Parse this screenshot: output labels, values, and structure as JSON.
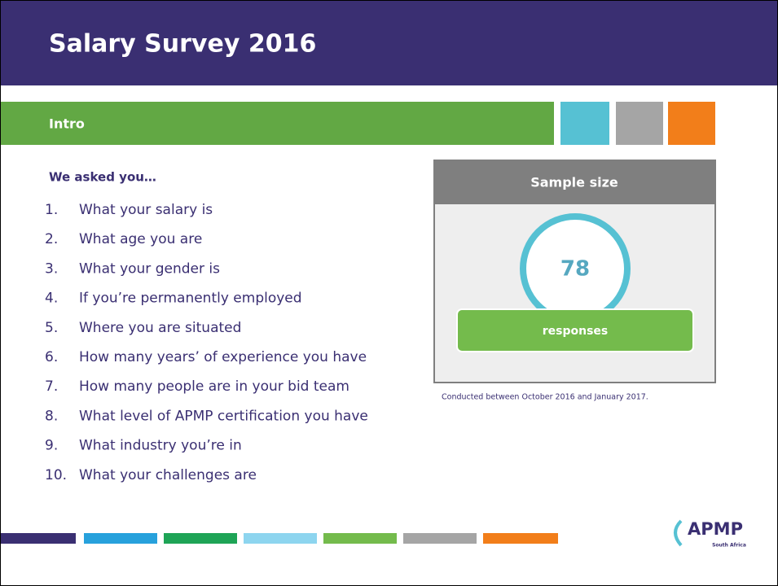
{
  "header": {
    "title": "Salary Survey 2016"
  },
  "section": {
    "title": "Intro"
  },
  "questions": {
    "heading": "We asked you…",
    "items": [
      {
        "number": "1.",
        "text": "What your salary is"
      },
      {
        "number": "2.",
        "text": "What age you are"
      },
      {
        "number": "3.",
        "text": "What your gender is"
      },
      {
        "number": "4.",
        "text": "If you’re permanently employed"
      },
      {
        "number": "5.",
        "text": "Where you are situated"
      },
      {
        "number": "6.",
        "text": "How many years’ of experience you have"
      },
      {
        "number": "7.",
        "text": "How many people are in your bid team"
      },
      {
        "number": "8.",
        "text": "What level of APMP certification you have"
      },
      {
        "number": "9.",
        "text": "What industry you’re in"
      },
      {
        "number": "10.",
        "text": "What your challenges are"
      }
    ]
  },
  "sample": {
    "title": "Sample size",
    "value": "78",
    "label": "responses",
    "note": "Conducted between October 2016 and January 2017."
  },
  "logo": {
    "text": "APMP",
    "subtext": "South Africa"
  }
}
